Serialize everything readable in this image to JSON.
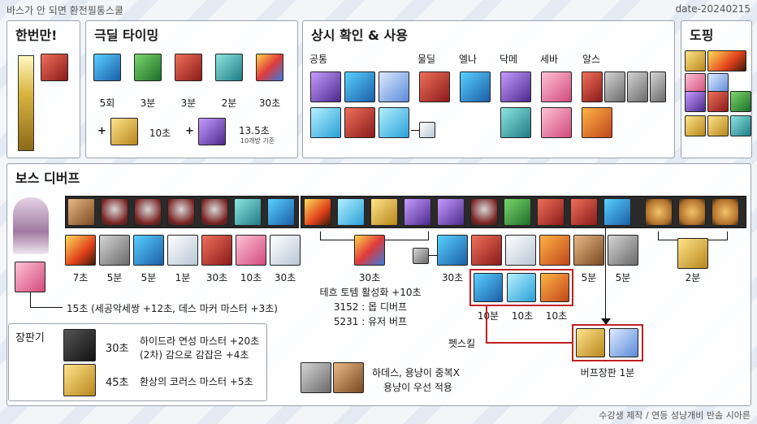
{
  "header": {
    "title": "바스가 안 되면 환전필통스쿨",
    "date": "date-20240215"
  },
  "footer": "수강생 제작 / 연등 성냥개비 반솜 시아른",
  "panels": {
    "once": {
      "title": "한번만!"
    },
    "extreme": {
      "title": "극딜 타이밍",
      "durations": [
        "5회",
        "3분",
        "3분",
        "2분",
        "30초"
      ],
      "extra1": "10초",
      "extra2": "13.5초",
      "extra2_note": "10개방 기준",
      "plus": "+"
    },
    "always": {
      "title": "상시 확인 & 사용",
      "cats": [
        "공통",
        "물딜",
        "엘나",
        "닥메",
        "세바",
        "알스"
      ]
    },
    "doping": {
      "title": "도핑"
    },
    "boss": {
      "title": "보스 디버프",
      "row_labels": [
        "7초",
        "5분",
        "5분",
        "1분",
        "30초",
        "10초",
        "30초"
      ],
      "totem_label": "30초",
      "totem_desc": [
        "테흐 토템 활성화 +10초",
        "3152 : 몹 디버프",
        "5231 : 유저 버프"
      ],
      "right_labels": [
        "30초",
        "5분",
        "5분",
        "2분"
      ],
      "pet_labels": [
        "10분",
        "10초",
        "10초"
      ],
      "pet_skill": "펫스킬",
      "buff_board": "버프장판 1분",
      "skull_note": "15초 (세공악세쌍 +12초, 데스 마커 마스터 +3초)",
      "hades_note": [
        "하데스, 용냥이 중복X",
        "용냥이 우선 적용"
      ]
    },
    "board": {
      "title": "장판기",
      "r1_time": "30초",
      "r1_desc": [
        "하이드라 연성 마스터 +20초",
        "(2차) 감으로 감잡은 +4초"
      ],
      "r2_time": "45초",
      "r2_desc": "환상의 코러스 마스터 +5초"
    }
  }
}
